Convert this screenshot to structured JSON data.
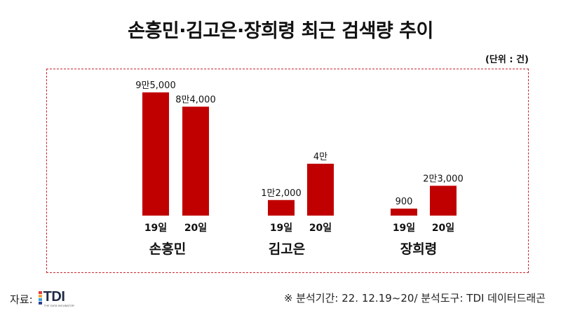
{
  "title": "손흥민·김고은·장희령 최근 검색량 추이",
  "unit": "(단위 : 건)",
  "footer": {
    "source_label": "자료:",
    "logo_text": "TDI",
    "logo_sub": "THE DATA INCUBATOR",
    "note": "※ 분석기간: 22. 12.19~20/ 분석도구: TDI 데이터드래곤"
  },
  "colors": {
    "bar": "#c00000",
    "frame": "#c9262f",
    "logo_bars": [
      "#e23a3a",
      "#f2a33a",
      "#3aa0d8",
      "#2c3e8f"
    ]
  },
  "chart_data": {
    "type": "bar",
    "title": "손흥민·김고은·장희령 최근 검색량 추이",
    "unit": "(단위 : 건)",
    "groups": [
      "손흥민",
      "김고은",
      "장희령"
    ],
    "categories": [
      "19일",
      "20일"
    ],
    "values": [
      [
        95000,
        84000
      ],
      [
        12000,
        40000
      ],
      [
        900,
        23000
      ]
    ],
    "labels": [
      [
        "9만5,000",
        "8만4,000"
      ],
      [
        "1만2,000",
        "4만"
      ],
      [
        "900",
        "2만3,000"
      ]
    ]
  }
}
